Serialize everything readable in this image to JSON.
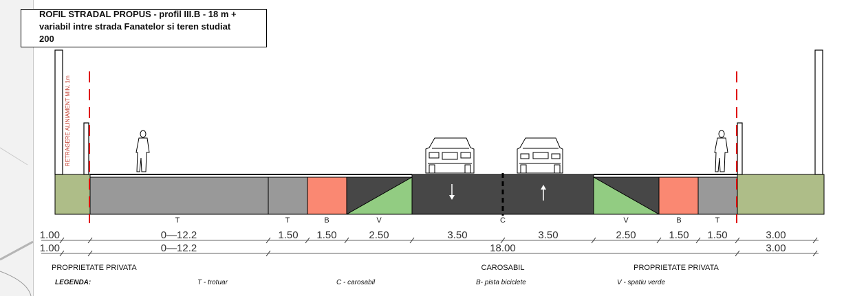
{
  "title": {
    "line1": "ROFIL STRADAL PROPUS - profil III.B - 18 m +",
    "line2": "variabil intre strada Fanatelor si teren studiat",
    "line3": "200"
  },
  "setback_label": "RETRAGERE ALINIAMENT MIN. 1m",
  "band_labels": [
    "T",
    "T",
    "B",
    "V",
    "C",
    "V",
    "B",
    "T"
  ],
  "dim_row1": [
    "1.00",
    "0—12.2",
    "1.50",
    "1.50",
    "2.50",
    "3.50",
    "3.50",
    "2.50",
    "1.50",
    "1.50",
    "3.00"
  ],
  "dim_row2": [
    "1.00",
    "0—12.2",
    "18.00",
    "3.00"
  ],
  "sections": {
    "left": "PROPRIETATE PRIVATA",
    "center": "CAROSABIL",
    "right": "PROPRIETATE PRIVATA"
  },
  "legend": {
    "title": "LEGENDA:",
    "t": "T - trotuar",
    "c": "C - carosabil",
    "b": "B- pista biciclete",
    "v": "V - spatiu verde"
  },
  "colors": {
    "sidewalk": "#999999",
    "bike": "#fa8872",
    "green": "#92cc82",
    "road": "#474747",
    "private": "#aebd88",
    "setback_line": "#e00000"
  }
}
